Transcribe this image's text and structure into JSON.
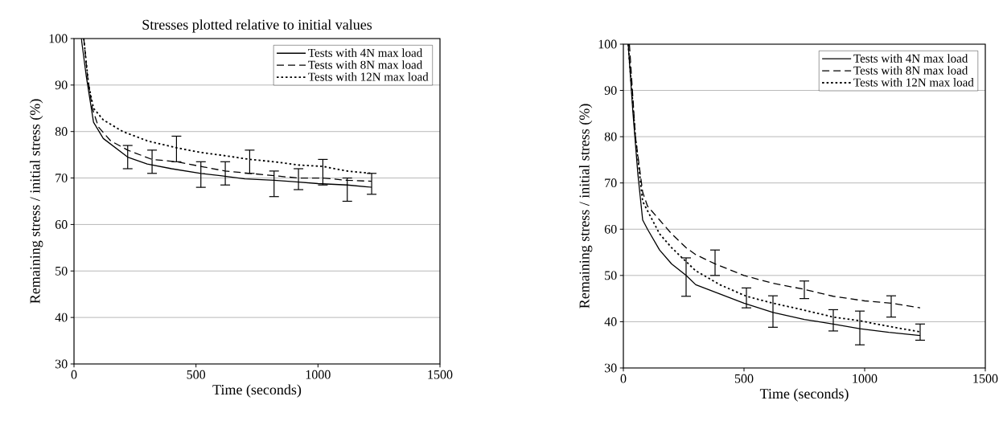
{
  "chart_data": [
    {
      "type": "line",
      "title": "Stresses plotted relative to initial values",
      "xlabel": "Time (seconds)",
      "ylabel": "Remaining stress / initial stress (%)",
      "xlim": [
        0,
        1500
      ],
      "ylim": [
        30,
        100
      ],
      "xticks": [
        0,
        500,
        1000,
        1500
      ],
      "yticks": [
        30,
        40,
        50,
        60,
        70,
        80,
        90,
        100
      ],
      "grid": "y",
      "legend": "top right",
      "marker": "none",
      "series": [
        {
          "name": "Tests with 4N max load",
          "color": "#000000",
          "line_style": "solid",
          "x": [
            30,
            50,
            80,
            120,
            220,
            300,
            400,
            520,
            600,
            700,
            820,
            900,
            1000,
            1120,
            1220
          ],
          "values": [
            100,
            92,
            82,
            78.5,
            74.5,
            73,
            72,
            71,
            70.5,
            69.8,
            69.5,
            69.2,
            68.8,
            68.5,
            68
          ],
          "errors": [
            null,
            null,
            null,
            null,
            [
              72,
              77
            ],
            null,
            null,
            [
              68,
              73.5
            ],
            null,
            null,
            [
              66,
              71.5
            ],
            null,
            null,
            [
              65,
              70
            ],
            null
          ]
        },
        {
          "name": "Tests with 8N max load",
          "color": "#000000",
          "line_style": "dashed",
          "x": [
            40,
            55,
            75,
            100,
            150,
            220,
            320,
            420,
            520,
            620,
            720,
            820,
            920,
            1020,
            1120,
            1220
          ],
          "values": [
            100,
            92,
            85,
            81,
            78,
            76,
            74,
            73.5,
            72.5,
            71.5,
            71,
            70.5,
            70,
            70,
            69.5,
            69.3
          ],
          "errors": [
            null,
            null,
            null,
            null,
            null,
            null,
            [
              71,
              76
            ],
            null,
            null,
            [
              68.5,
              73.5
            ],
            null,
            null,
            [
              67.5,
              72
            ],
            null,
            null,
            [
              66.5,
              71
            ]
          ]
        },
        {
          "name": "Tests with 12N max load",
          "color": "#000000",
          "line_style": "dotted",
          "x": [
            40,
            60,
            80,
            120,
            200,
            300,
            420,
            520,
            620,
            720,
            820,
            920,
            1020,
            1120,
            1220
          ],
          "values": [
            100,
            90,
            85,
            82.5,
            80,
            78,
            76.5,
            75.5,
            74.8,
            74,
            73.5,
            72.8,
            72.5,
            71.5,
            71
          ],
          "errors": [
            null,
            null,
            null,
            null,
            null,
            null,
            [
              73.5,
              79
            ],
            null,
            null,
            [
              71,
              76
            ],
            null,
            null,
            [
              68.5,
              74
            ],
            null,
            null
          ]
        }
      ]
    },
    {
      "type": "line",
      "xlabel": "Time (seconds)",
      "ylabel": "Remaining stress / initial stress (%)",
      "xlim": [
        0,
        1500
      ],
      "ylim": [
        30,
        100
      ],
      "xticks": [
        0,
        500,
        1000,
        1500
      ],
      "yticks": [
        30,
        40,
        50,
        60,
        70,
        80,
        90,
        100
      ],
      "grid": "y",
      "legend": "top right",
      "marker": "none",
      "series": [
        {
          "name": "Tests with 4N max load",
          "color": "#000000",
          "line_style": "solid",
          "x": [
            20,
            40,
            60,
            80,
            100,
            150,
            200,
            260,
            300,
            400,
            500,
            620,
            750,
            870,
            980,
            1100,
            1230
          ],
          "values": [
            100,
            85,
            72,
            62,
            60,
            55.5,
            52.5,
            50,
            48,
            46,
            44,
            42,
            40.5,
            39.5,
            38.5,
            37.7,
            37
          ],
          "errors": [
            null,
            null,
            null,
            null,
            null,
            null,
            null,
            [
              45.5,
              53.8
            ],
            null,
            null,
            null,
            [
              38.8,
              45.6
            ],
            null,
            null,
            [
              35,
              42.3
            ],
            null,
            null
          ]
        },
        {
          "name": "Tests with 8N max load",
          "color": "#000000",
          "line_style": "dashed",
          "x": [
            25,
            50,
            80,
            100,
            150,
            200,
            260,
            300,
            380,
            500,
            620,
            750,
            870,
            1000,
            1110,
            1230
          ],
          "values": [
            100,
            80,
            68,
            65,
            62,
            59,
            56,
            54.5,
            52.5,
            50,
            48.3,
            47,
            45.5,
            44.5,
            44,
            43
          ],
          "errors": [
            null,
            null,
            null,
            null,
            null,
            null,
            null,
            null,
            [
              50,
              55.5
            ],
            null,
            null,
            [
              45,
              48.8
            ],
            null,
            null,
            [
              41,
              45.6
            ],
            null
          ]
        },
        {
          "name": "Tests with 12N max load",
          "color": "#000000",
          "line_style": "dotted",
          "x": [
            20,
            50,
            80,
            100,
            150,
            200,
            260,
            300,
            400,
            510,
            620,
            750,
            870,
            980,
            1100,
            1230
          ],
          "values": [
            100,
            80,
            66,
            64,
            59,
            56,
            53,
            51,
            48,
            45.5,
            44,
            42.5,
            41,
            40.2,
            39,
            37.8
          ],
          "errors": [
            null,
            null,
            null,
            null,
            null,
            null,
            null,
            null,
            null,
            [
              43,
              47.3
            ],
            null,
            null,
            [
              38,
              42.6
            ],
            null,
            null,
            [
              36,
              39.5
            ]
          ]
        }
      ]
    }
  ]
}
